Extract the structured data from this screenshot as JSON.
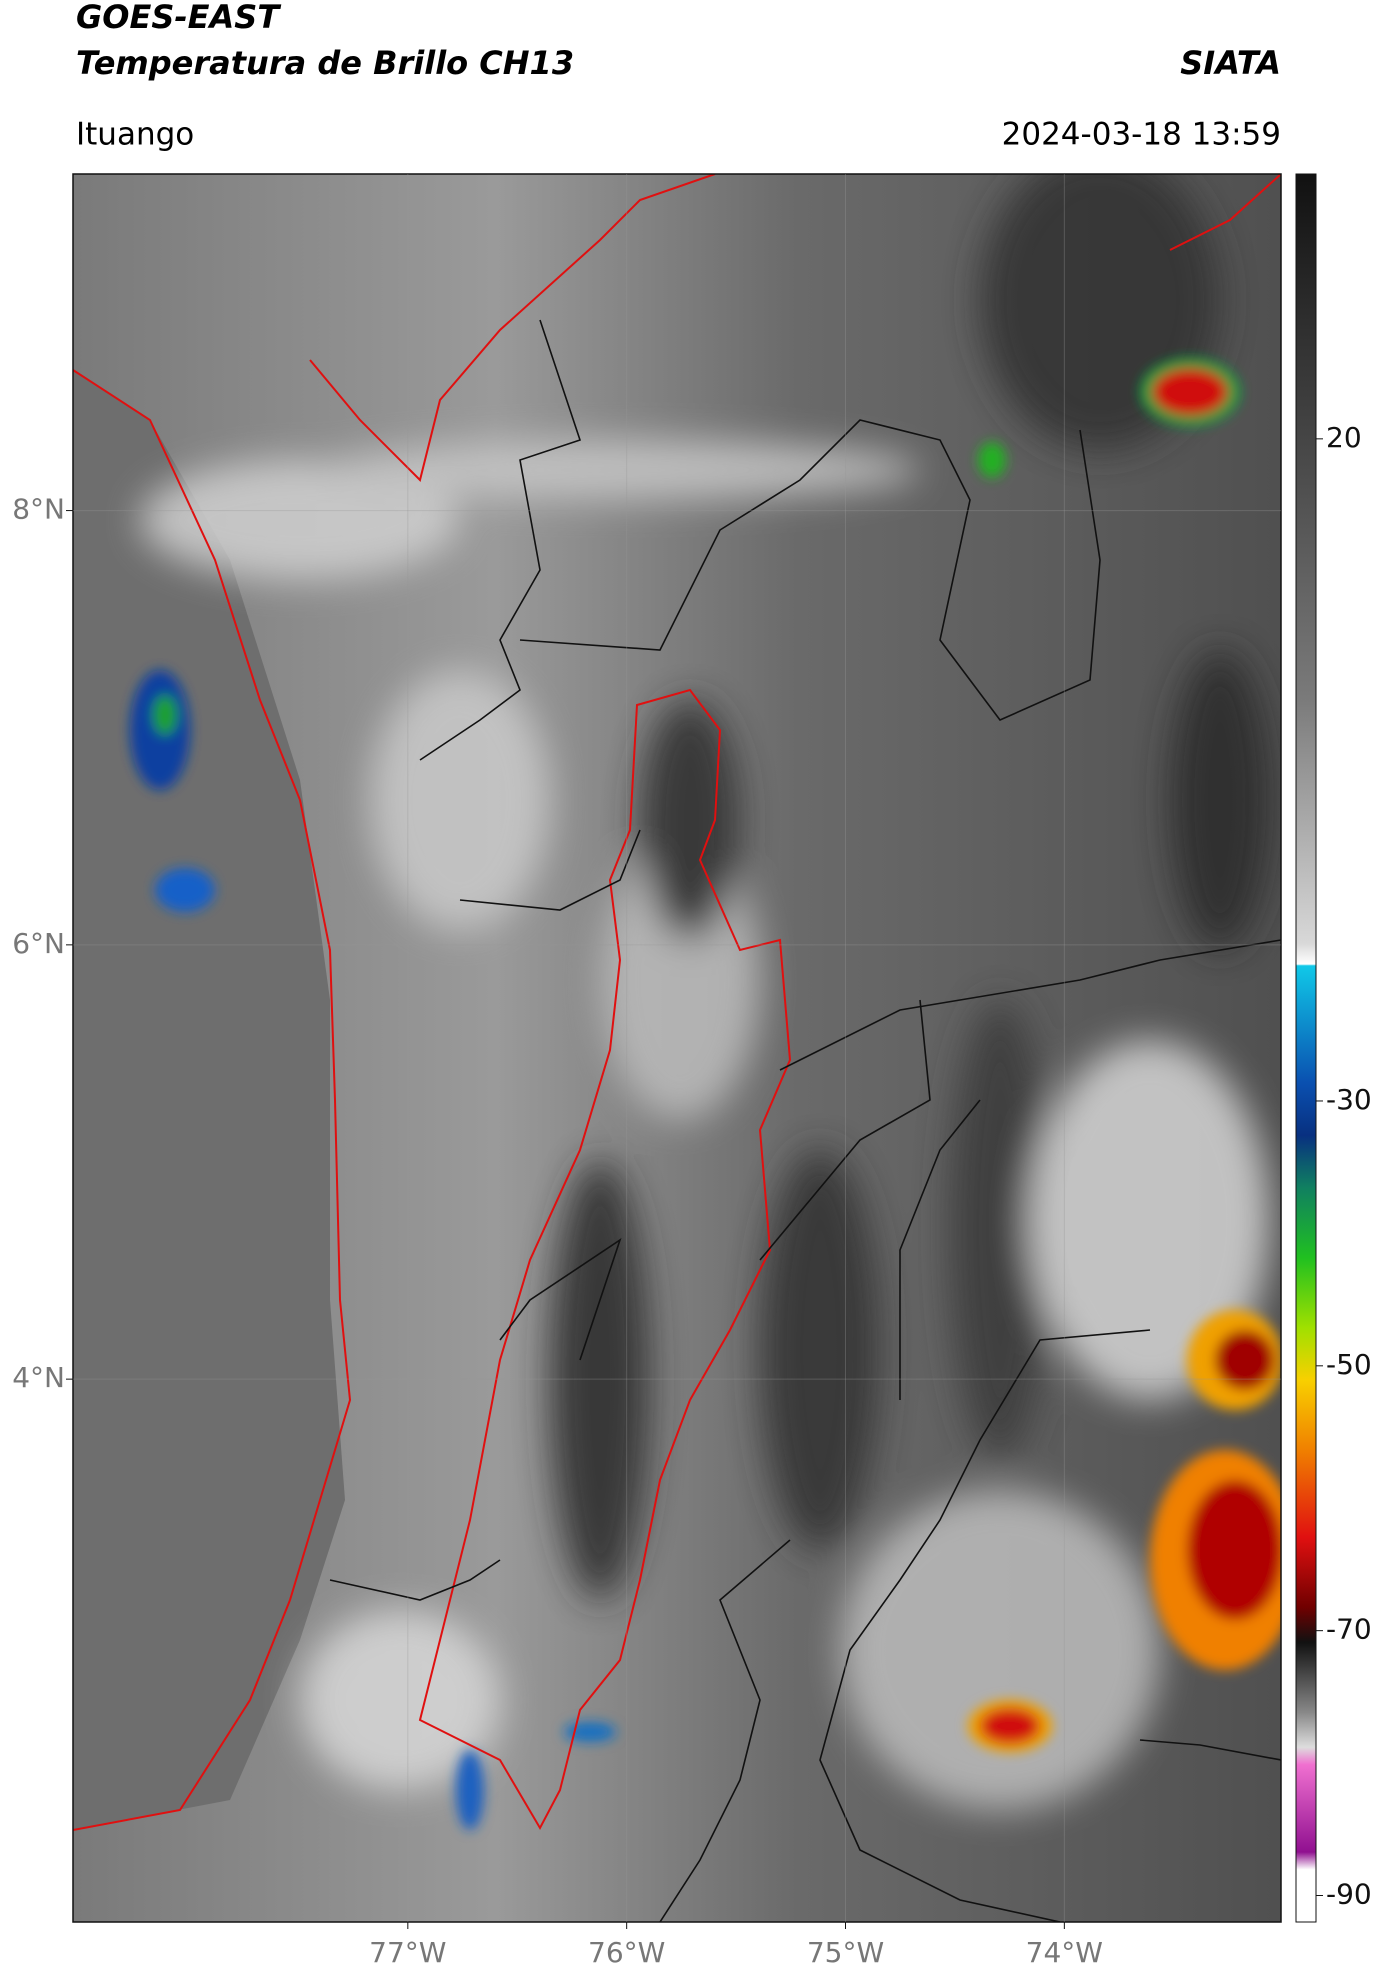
{
  "header": {
    "title": "GOES-EAST",
    "subtitle": "Temperatura de Brillo CH13",
    "credit": "SIATA",
    "location": "Ituango",
    "datetime": "2024-03-18 13:59"
  },
  "map": {
    "lat_range": [
      1.5,
      9.55
    ],
    "lon_range": [
      -78.53,
      -73.01
    ],
    "lat_ticks": [
      {
        "value": 8,
        "label": "8°N"
      },
      {
        "value": 6,
        "label": "6°N"
      },
      {
        "value": 4,
        "label": "4°N"
      }
    ],
    "lon_ticks": [
      {
        "value": -77,
        "label": "77°W"
      },
      {
        "value": -76,
        "label": "76°W"
      },
      {
        "value": -75,
        "label": "75°W"
      },
      {
        "value": -74,
        "label": "74°W"
      }
    ]
  },
  "colorbar": {
    "range": [
      -92,
      40
    ],
    "ticks": [
      20,
      -30,
      -50,
      -70,
      -90
    ]
  }
}
